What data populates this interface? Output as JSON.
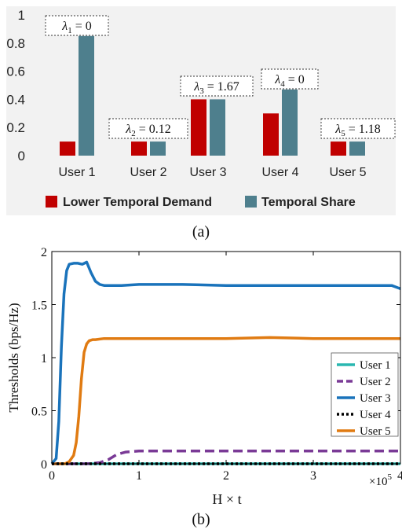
{
  "panels": {
    "a_label": "(a)",
    "b_label": "(b)"
  },
  "colors": {
    "demand": "#c00000",
    "share": "#4e7f8d",
    "panel_a_bg": "#f2f2f2",
    "user1": "#2ab7b0",
    "user2": "#7a3a96",
    "user3": "#1a73bb",
    "user4": "#000000",
    "user5": "#e07b12"
  },
  "chart_data": [
    {
      "type": "bar",
      "categories": [
        "User 1",
        "User 2",
        "User 3",
        "User 4",
        "User 5"
      ],
      "series": [
        {
          "name": "Lower Temporal Demand",
          "values": [
            0.1,
            0.1,
            0.4,
            0.3,
            0.1
          ]
        },
        {
          "name": "Temporal Share",
          "values": [
            0.85,
            0.1,
            0.4,
            0.47,
            0.1
          ]
        }
      ],
      "yticks": [
        "0",
        "0.2",
        "0.4",
        "0.6",
        "0.8",
        "1"
      ],
      "ylim": [
        0,
        1
      ],
      "annotations": [
        {
          "symbol": "λ",
          "sub": "1",
          "rest": " = 0"
        },
        {
          "symbol": "λ",
          "sub": "2",
          "rest": " = 0.12"
        },
        {
          "symbol": "λ",
          "sub": "3",
          "rest": " = 1.67"
        },
        {
          "symbol": "λ",
          "sub": "4",
          "rest": " = 0"
        },
        {
          "symbol": "λ",
          "sub": "5",
          "rest": " = 1.18"
        }
      ],
      "legend_position": "bottom",
      "grid": false
    },
    {
      "type": "line",
      "xlabel": "H × t",
      "xexponent_base": "×10",
      "xexponent_power": "5",
      "ylabel": "Thresholds (bps/Hz)",
      "xlim": [
        0,
        4
      ],
      "ylim": [
        0,
        2
      ],
      "xticks": [
        "0",
        "1",
        "2",
        "3",
        "4"
      ],
      "yticks": [
        "0",
        "0.5",
        "1",
        "1.5",
        "2"
      ],
      "legend_position": "bottom-right",
      "grid": false,
      "series": [
        {
          "name": "User 1",
          "x": [
            0,
            4
          ],
          "y": [
            0,
            0
          ]
        },
        {
          "name": "User 2",
          "x": [
            0,
            0.4,
            0.55,
            0.65,
            0.75,
            0.85,
            1.0,
            1.5,
            2.0,
            2.5,
            3.0,
            3.5,
            4.0
          ],
          "y": [
            0,
            0,
            0.01,
            0.04,
            0.09,
            0.11,
            0.12,
            0.12,
            0.12,
            0.12,
            0.12,
            0.12,
            0.12
          ]
        },
        {
          "name": "User 3",
          "x": [
            0,
            0.05,
            0.08,
            0.11,
            0.14,
            0.17,
            0.2,
            0.25,
            0.3,
            0.35,
            0.4,
            0.45,
            0.5,
            0.55,
            0.6,
            0.8,
            1.0,
            1.5,
            2.0,
            2.5,
            3.0,
            3.5,
            3.9,
            4.0
          ],
          "y": [
            0,
            0.05,
            0.4,
            1.1,
            1.6,
            1.82,
            1.88,
            1.89,
            1.89,
            1.88,
            1.9,
            1.8,
            1.72,
            1.69,
            1.68,
            1.68,
            1.69,
            1.69,
            1.68,
            1.68,
            1.68,
            1.68,
            1.68,
            1.65
          ]
        },
        {
          "name": "User 4",
          "x": [
            0,
            4
          ],
          "y": [
            0,
            0
          ]
        },
        {
          "name": "User 5",
          "x": [
            0,
            0.15,
            0.2,
            0.25,
            0.28,
            0.31,
            0.34,
            0.37,
            0.4,
            0.43,
            0.47,
            0.5,
            0.6,
            0.8,
            1.0,
            1.5,
            2.0,
            2.5,
            3.0,
            3.5,
            4.0
          ],
          "y": [
            0,
            0,
            0.02,
            0.08,
            0.2,
            0.45,
            0.8,
            1.05,
            1.13,
            1.16,
            1.17,
            1.17,
            1.18,
            1.18,
            1.18,
            1.18,
            1.18,
            1.19,
            1.18,
            1.18,
            1.18
          ]
        }
      ]
    }
  ]
}
